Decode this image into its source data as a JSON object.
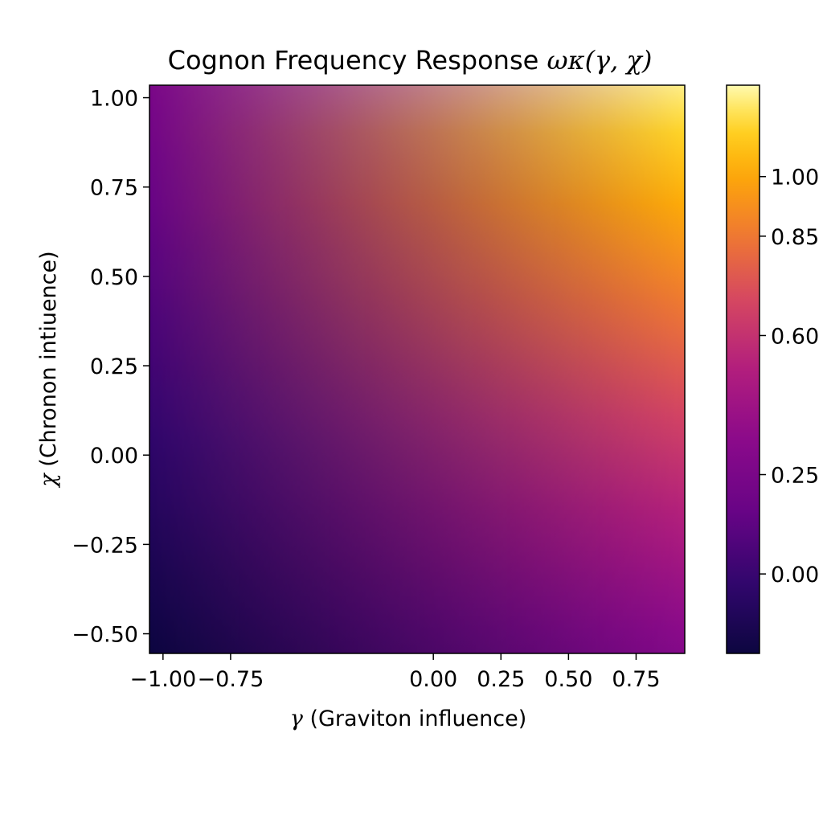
{
  "chart_data": {
    "type": "heatmap",
    "title": {
      "text": "Cognon Frequency Response ",
      "symbol": "ωκ(γ, χ)"
    },
    "xlabel": {
      "symbol": "γ",
      "text": " (Graviton influence)"
    },
    "ylabel": {
      "symbol": "χ",
      "text": " (Chronon intiuence)"
    },
    "xlim": [
      -1.05,
      0.93
    ],
    "ylim": [
      -0.555,
      1.035
    ],
    "x_ticks": [
      -1.0,
      -0.75,
      0.0,
      0.25,
      0.5,
      0.75
    ],
    "x_tick_labels": [
      "−1.00",
      "−0.75",
      "0.00",
      "0.25",
      "0.50",
      "0.75"
    ],
    "y_ticks": [
      -0.5,
      -0.25,
      0.0,
      0.25,
      0.5,
      0.75,
      1.0
    ],
    "y_tick_labels": [
      "−0.50",
      "−0.25",
      "0.00",
      "0.25",
      "0.50",
      "0.75",
      "1.00"
    ],
    "colormap": "inferno-like",
    "colorbar": {
      "range": [
        -0.2,
        1.23
      ],
      "ticks": [
        0.0,
        0.25,
        0.6,
        0.85,
        1.0
      ],
      "tick_labels": [
        "0.00",
        "0.25",
        "0.60",
        "0.85",
        "1.00"
      ]
    },
    "grid": false,
    "corner_values": {
      "bottom_left": -0.2,
      "bottom_right": 0.3,
      "top_left": 0.25,
      "top_right": 1.2
    }
  }
}
